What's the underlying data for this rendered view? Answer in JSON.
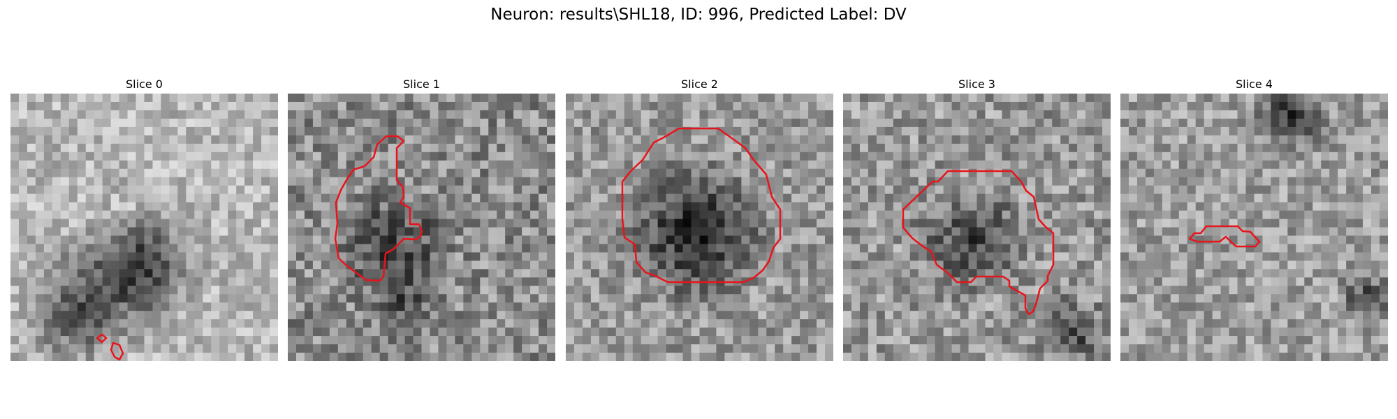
{
  "title": "Neuron: results\\SHL18, ID: 996, Predicted Label: DV",
  "slices": [
    {
      "label": "Slice 0"
    },
    {
      "label": "Slice 1"
    },
    {
      "label": "Slice 2"
    },
    {
      "label": "Slice 3"
    },
    {
      "label": "Slice 4"
    }
  ],
  "colors": {
    "contour": "#e8141b",
    "background": "#ffffff"
  }
}
